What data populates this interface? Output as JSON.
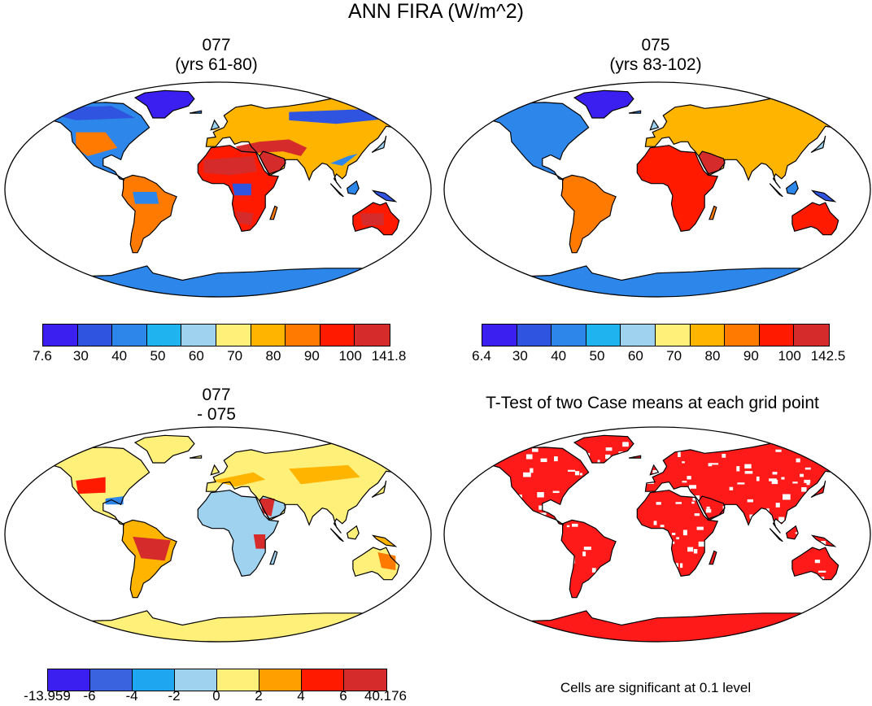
{
  "figure_title": "ANN FIRA (W/m^2)",
  "panels": [
    {
      "title_line1": "077",
      "title_line2": "(yrs 61-80)",
      "colorbar": {
        "colors": [
          "#3b1ff0",
          "#2f55e0",
          "#2d86ea",
          "#1fb4f0",
          "#9fd2ef",
          "#fff07a",
          "#ffb400",
          "#ff7a00",
          "#ff1a00",
          "#d62b2b"
        ],
        "labels": [
          "7.6",
          "30",
          "40",
          "50",
          "60",
          "70",
          "80",
          "90",
          "100",
          "141.8"
        ]
      }
    },
    {
      "title_line1": "075",
      "title_line2": "(yrs 83-102)",
      "colorbar": {
        "colors": [
          "#3b1ff0",
          "#2f55e0",
          "#2d86ea",
          "#1fb4f0",
          "#9fd2ef",
          "#fff07a",
          "#ffb400",
          "#ff7a00",
          "#ff1a00",
          "#d62b2b"
        ],
        "labels": [
          "6.4",
          "30",
          "40",
          "50",
          "60",
          "70",
          "80",
          "90",
          "100",
          "142.5"
        ]
      }
    },
    {
      "title_line1": "077",
      "title_line2": "- 075",
      "colorbar": {
        "colors": [
          "#3b1ff0",
          "#3a63e0",
          "#1fa6f0",
          "#9fd2ef",
          "#fff07a",
          "#ffa000",
          "#ff1a00",
          "#d62b2b"
        ],
        "labels": [
          "-13.959",
          "-6",
          "-4",
          "-2",
          "0",
          "2",
          "4",
          "6",
          "40.176"
        ]
      }
    },
    {
      "title_line1": "T-Test of two Case means at each grid point",
      "note": "Cells are significant at 0.1 level",
      "fill": "#ff1a1a"
    }
  ]
}
